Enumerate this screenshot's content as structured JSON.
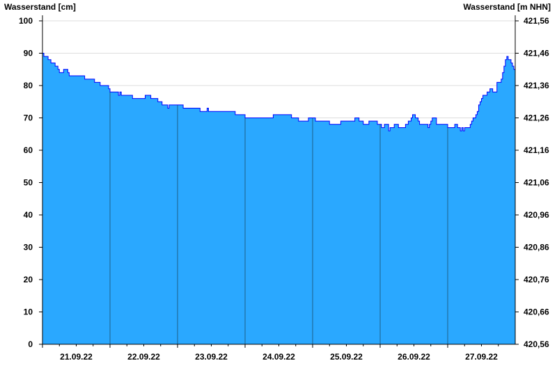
{
  "chart_data": {
    "type": "area",
    "ylabel_left": "Wasserstand [cm]",
    "ylabel_right": "Wasserstand [m NHN]",
    "ylim": [
      0,
      100
    ],
    "yticks_left": [
      "0",
      "10",
      "20",
      "30",
      "40",
      "50",
      "60",
      "70",
      "80",
      "90",
      "100"
    ],
    "yticks_right": [
      "420,56",
      "420,66",
      "420,76",
      "420,86",
      "420,96",
      "421,06",
      "421,16",
      "421,26",
      "421,36",
      "421,46",
      "421,56"
    ],
    "xlim": [
      "21.09.22 00:00",
      "28.09.22 00:00"
    ],
    "xtick_labels": [
      "21.09.22",
      "22.09.22",
      "23.09.22",
      "24.09.22",
      "25.09.22",
      "26.09.22",
      "27.09.22"
    ],
    "grid": true,
    "step": true,
    "colors": {
      "fill": "#2aa8ff",
      "line": "#0000ff",
      "day_divider": "#1f5f8a",
      "grid": "#dddddd"
    },
    "points": [
      [
        "21.09.22 00:00",
        90
      ],
      [
        "21.09.22 00:30",
        89
      ],
      [
        "21.09.22 02:00",
        88
      ],
      [
        "21.09.22 03:00",
        87
      ],
      [
        "21.09.22 04:30",
        86
      ],
      [
        "21.09.22 05:30",
        85
      ],
      [
        "21.09.22 06:00",
        84
      ],
      [
        "21.09.22 07:30",
        85
      ],
      [
        "21.09.22 09:00",
        84
      ],
      [
        "21.09.22 09:30",
        83
      ],
      [
        "21.09.22 15:00",
        82
      ],
      [
        "21.09.22 18:30",
        81
      ],
      [
        "21.09.22 20:30",
        80
      ],
      [
        "21.09.22 23:30",
        79
      ],
      [
        "22.09.22 00:00",
        78
      ],
      [
        "22.09.22 03:00",
        77
      ],
      [
        "22.09.22 03:30",
        78
      ],
      [
        "22.09.22 04:00",
        77
      ],
      [
        "22.09.22 08:00",
        76
      ],
      [
        "22.09.22 12:30",
        77
      ],
      [
        "22.09.22 14:30",
        76
      ],
      [
        "22.09.22 17:00",
        75
      ],
      [
        "22.09.22 18:30",
        74
      ],
      [
        "22.09.22 20:30",
        73
      ],
      [
        "22.09.22 21:00",
        74
      ],
      [
        "23.09.22 02:00",
        73
      ],
      [
        "23.09.22 08:00",
        72
      ],
      [
        "23.09.22 10:30",
        73
      ],
      [
        "23.09.22 11:00",
        72
      ],
      [
        "23.09.22 20:30",
        71
      ],
      [
        "24.09.22 00:00",
        70
      ],
      [
        "24.09.22 10:00",
        71
      ],
      [
        "24.09.22 16:30",
        70
      ],
      [
        "24.09.22 19:00",
        69
      ],
      [
        "24.09.22 22:30",
        70
      ],
      [
        "25.09.22 01:00",
        69
      ],
      [
        "25.09.22 06:00",
        68
      ],
      [
        "25.09.22 10:00",
        69
      ],
      [
        "25.09.22 15:00",
        70
      ],
      [
        "25.09.22 16:30",
        69
      ],
      [
        "25.09.22 18:00",
        68
      ],
      [
        "25.09.22 20:00",
        69
      ],
      [
        "25.09.22 23:00",
        68
      ],
      [
        "26.09.22 00:30",
        67
      ],
      [
        "26.09.22 01:30",
        68
      ],
      [
        "26.09.22 03:00",
        66
      ],
      [
        "26.09.22 03:30",
        67
      ],
      [
        "26.09.22 05:00",
        68
      ],
      [
        "26.09.22 06:30",
        67
      ],
      [
        "26.09.22 09:00",
        68
      ],
      [
        "26.09.22 10:00",
        69
      ],
      [
        "26.09.22 11:00",
        70
      ],
      [
        "26.09.22 11:30",
        71
      ],
      [
        "26.09.22 12:30",
        70
      ],
      [
        "26.09.22 13:30",
        69
      ],
      [
        "26.09.22 14:00",
        68
      ],
      [
        "26.09.22 17:00",
        67
      ],
      [
        "26.09.22 17:30",
        68
      ],
      [
        "26.09.22 18:00",
        69
      ],
      [
        "26.09.22 18:30",
        70
      ],
      [
        "26.09.22 20:00",
        68
      ],
      [
        "27.09.22 00:00",
        67
      ],
      [
        "27.09.22 02:30",
        68
      ],
      [
        "27.09.22 03:30",
        67
      ],
      [
        "27.09.22 04:30",
        66
      ],
      [
        "27.09.22 05:00",
        67
      ],
      [
        "27.09.22 05:30",
        66
      ],
      [
        "27.09.22 06:00",
        67
      ],
      [
        "27.09.22 08:00",
        68
      ],
      [
        "27.09.22 08:30",
        69
      ],
      [
        "27.09.22 09:00",
        70
      ],
      [
        "27.09.22 10:00",
        71
      ],
      [
        "27.09.22 10:30",
        72
      ],
      [
        "27.09.22 11:00",
        74
      ],
      [
        "27.09.22 11:30",
        75
      ],
      [
        "27.09.22 12:00",
        76
      ],
      [
        "27.09.22 12:30",
        77
      ],
      [
        "27.09.22 14:00",
        78
      ],
      [
        "27.09.22 15:00",
        79
      ],
      [
        "27.09.22 16:00",
        78
      ],
      [
        "27.09.22 17:30",
        81
      ],
      [
        "27.09.22 19:00",
        82
      ],
      [
        "27.09.22 19:30",
        84
      ],
      [
        "27.09.22 20:00",
        86
      ],
      [
        "27.09.22 20:30",
        88
      ],
      [
        "27.09.22 21:00",
        89
      ],
      [
        "27.09.22 21:30",
        88
      ],
      [
        "27.09.22 22:30",
        87
      ],
      [
        "27.09.22 23:00",
        86
      ],
      [
        "27.09.22 23:30",
        85
      ],
      [
        "28.09.22 00:00",
        84
      ]
    ]
  }
}
